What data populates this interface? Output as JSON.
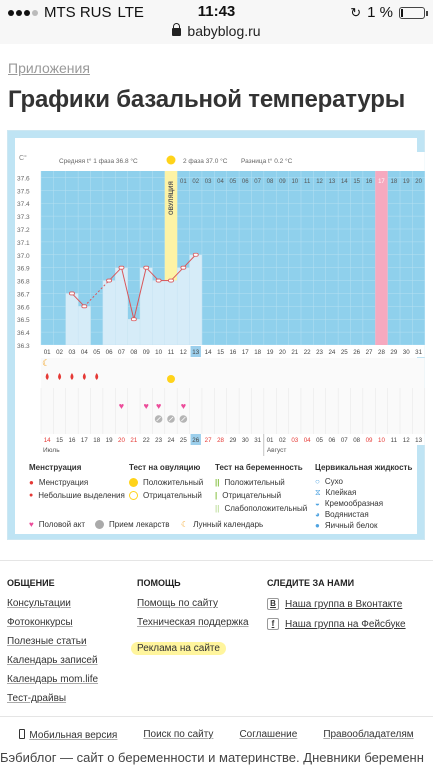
{
  "status": {
    "carrier": "MTS RUS",
    "network": "LTE",
    "time": "11:43",
    "battery": "1 %"
  },
  "browser": {
    "url": "babyblog.ru"
  },
  "breadcrumb": "Приложения",
  "title": "Графики базальной температуры",
  "chart_data": {
    "type": "line",
    "title": "",
    "ylabel": "C°",
    "ylim": [
      36.3,
      37.65
    ],
    "y_ticks": [
      "37.6",
      "37.5",
      "37.4",
      "37.3",
      "37.2",
      "37.1",
      "37.0",
      "36.9",
      "36.8",
      "36.7",
      "36.6",
      "36.5",
      "36.4",
      "36.3"
    ],
    "header": {
      "avg1": "Средняя t° 1 фаза 36.8 °С",
      "phase2": "2 фаза 37.0 °С",
      "diff": "Разница t° 0.2 °С"
    },
    "ovulation_label": "ОВУЛЯЦИЯ",
    "top_days": [
      "01",
      "02",
      "03",
      "04",
      "05",
      "06",
      "07",
      "08",
      "09",
      "10",
      "11",
      "12",
      "13",
      "14",
      "15",
      "16",
      "17",
      "18",
      "19",
      "20"
    ],
    "cycle_days": [
      "01",
      "02",
      "03",
      "04",
      "05",
      "06",
      "07",
      "08",
      "09",
      "10",
      "11",
      "12",
      "13",
      "14",
      "15",
      "16",
      "17",
      "18",
      "19",
      "20",
      "21",
      "22",
      "23",
      "24",
      "25",
      "26",
      "27",
      "28",
      "29",
      "30",
      "31"
    ],
    "dates": [
      "14",
      "15",
      "16",
      "17",
      "18",
      "19",
      "20",
      "21",
      "22",
      "23",
      "24",
      "25",
      "26",
      "27",
      "28",
      "29",
      "30",
      "31",
      "01",
      "02",
      "03",
      "04",
      "05",
      "06",
      "07",
      "08",
      "09",
      "10",
      "11",
      "12",
      "13"
    ],
    "date_colors": [
      "red",
      "",
      "",
      "",
      "",
      "",
      "red",
      "red",
      "",
      "",
      "",
      "",
      "",
      "red",
      "red",
      "",
      "",
      "",
      "",
      "",
      "red",
      "red",
      "",
      "",
      "",
      "",
      "red",
      "red",
      "",
      "",
      ""
    ],
    "month_left": "Июль",
    "month_right": "Август",
    "x": [
      1,
      2,
      3,
      4,
      5,
      6,
      7,
      8,
      9,
      10,
      11,
      12,
      13
    ],
    "values": [
      null,
      null,
      36.7,
      36.6,
      null,
      36.8,
      36.9,
      36.5,
      36.9,
      36.8,
      36.8,
      36.9,
      37.0
    ],
    "ovulation_day": 11,
    "highlight_day": 13,
    "menstruation_days": [
      1,
      2,
      3,
      4,
      5
    ],
    "moon_day": 1,
    "ovulation_test_positive_day": 11,
    "intercourse_days": [
      7,
      9,
      10,
      12
    ],
    "medication_days": [
      10,
      11,
      12
    ],
    "pink_column_day": 28
  },
  "legend": {
    "c1": {
      "title": "Менструация",
      "items": [
        "Менструация",
        "Небольшие выделения"
      ]
    },
    "c2": {
      "title": "Тест на овуляцию",
      "items": [
        "Положительный",
        "Отрицательный"
      ]
    },
    "c3": {
      "title": "Тест на беременность",
      "items": [
        "Положительный",
        "Отрицательный",
        "Слабоположительный"
      ]
    },
    "c4": {
      "title": "Цервикальная жидкость",
      "items": [
        "Сухо",
        "Клейкая",
        "Кремообразная",
        "Водянистая",
        "Яичный белок"
      ]
    },
    "bottom": [
      "Половой акт",
      "Прием лекарств",
      "Лунный календарь"
    ]
  },
  "footer": {
    "col1": {
      "title": "ОБЩЕНИЕ",
      "links": [
        "Консультации",
        "Фотоконкурсы",
        "Полезные статьи",
        "Календарь записей",
        "Календарь mom.life",
        "Тест-драйвы"
      ]
    },
    "col2": {
      "title": "ПОМОЩЬ",
      "links": [
        "Помощь по сайту",
        "Техническая поддержка"
      ],
      "ad": "Реклама на сайте"
    },
    "col3": {
      "title": "СЛЕДИТЕ ЗА НАМИ",
      "vk": "Наша группа в Вконтакте",
      "fb": "Наша группа на Фейсбуке"
    },
    "bottom": [
      "Мобильная версия",
      "Поиск по сайту",
      "Соглашение",
      "Правообладателям"
    ],
    "tagline": "Бэбиблог — сайт о беременности и материнстве. Дневники беременн"
  },
  "colors": {
    "plot_bg": "#8fd0ec",
    "bar": "#d6ecf8",
    "ovulation": "#fdf3a5",
    "pink": "#f6a9bf",
    "line": "#d8565a",
    "highlight": "#9ccfec"
  }
}
